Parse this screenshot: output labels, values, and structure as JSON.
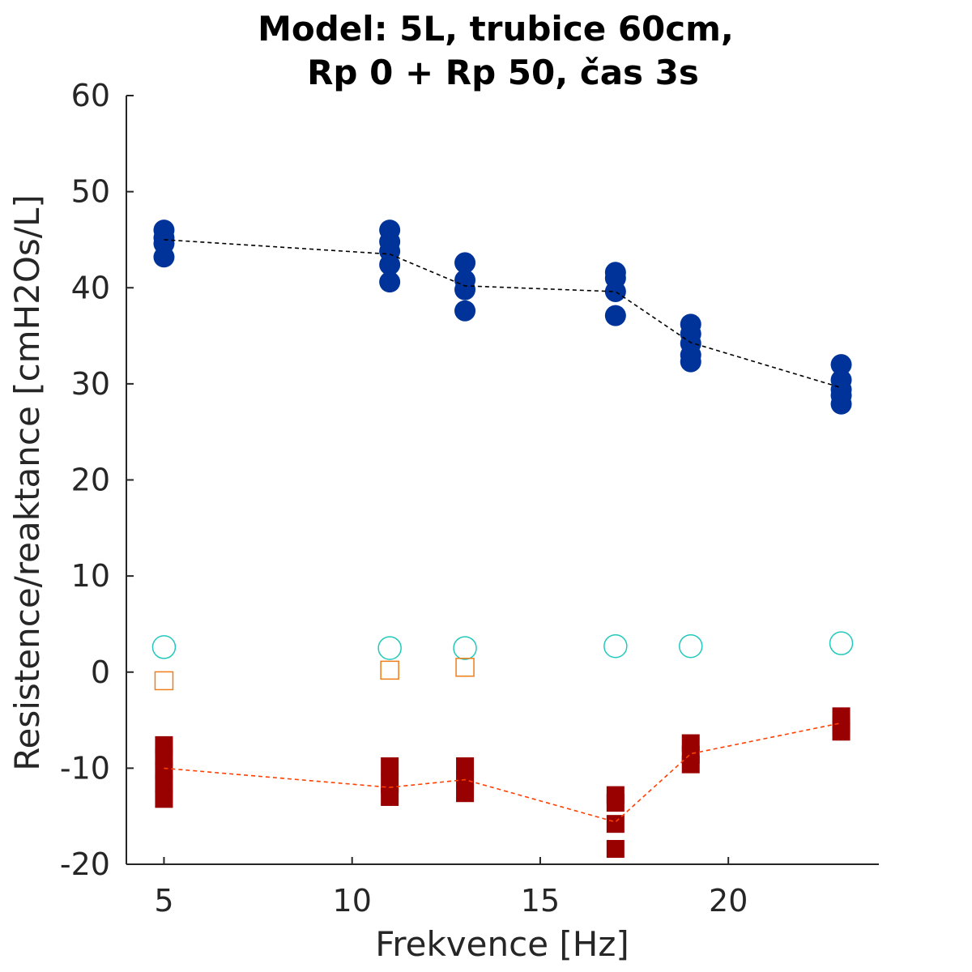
{
  "chart_data": {
    "type": "scatter",
    "title_lines": [
      "Model: 5L, trubice 60cm,",
      "Rp 0 + Rp 50, čas 3s"
    ],
    "xlabel": "Frekvence [Hz]",
    "ylabel": "Resistence/reaktance [cmH2Os/L]",
    "xlim": [
      4,
      24
    ],
    "ylim": [
      -20,
      60
    ],
    "xticks": [
      5,
      10,
      15,
      20
    ],
    "yticks": [
      -20,
      -10,
      0,
      10,
      20,
      30,
      40,
      50,
      60
    ],
    "ytick_labels": [
      "-20",
      "-10",
      "0",
      "10",
      "20",
      "30",
      "40",
      "50",
      "60"
    ],
    "grid": false,
    "legend": "none",
    "series": [
      {
        "marker": "filled-circle",
        "color": "#003399",
        "points": [
          [
            5,
            46.0
          ],
          [
            5,
            45.2
          ],
          [
            5,
            44.6
          ],
          [
            5,
            43.2
          ],
          [
            11,
            46.0
          ],
          [
            11,
            44.8
          ],
          [
            11,
            43.8
          ],
          [
            11,
            42.4
          ],
          [
            11,
            40.6
          ],
          [
            13,
            42.6
          ],
          [
            13,
            40.8
          ],
          [
            13,
            39.8
          ],
          [
            13,
            37.6
          ],
          [
            17,
            41.6
          ],
          [
            17,
            41.0
          ],
          [
            17,
            39.6
          ],
          [
            17,
            37.1
          ],
          [
            19,
            36.2
          ],
          [
            19,
            35.2
          ],
          [
            19,
            34.2
          ],
          [
            19,
            33.0
          ],
          [
            19,
            32.3
          ],
          [
            23,
            32.0
          ],
          [
            23,
            30.4
          ],
          [
            23,
            29.4
          ],
          [
            23,
            28.8
          ],
          [
            23,
            27.9
          ]
        ]
      },
      {
        "marker": "dashed-line",
        "color": "#000000",
        "points": [
          [
            5,
            45.0
          ],
          [
            11,
            43.5
          ],
          [
            13,
            40.2
          ],
          [
            17,
            39.6
          ],
          [
            19,
            34.3
          ],
          [
            23,
            29.6
          ]
        ]
      },
      {
        "marker": "filled-square",
        "color": "#990000",
        "points": [
          [
            5,
            -7.6
          ],
          [
            5,
            -8.8
          ],
          [
            5,
            -10.2
          ],
          [
            5,
            -11.6
          ],
          [
            5,
            -13.2
          ],
          [
            11,
            -9.8
          ],
          [
            11,
            -11.6
          ],
          [
            11,
            -13.0
          ],
          [
            13,
            -9.8
          ],
          [
            13,
            -11.2
          ],
          [
            13,
            -12.6
          ],
          [
            17,
            -12.8
          ],
          [
            17,
            -13.6
          ],
          [
            17,
            -15.8
          ],
          [
            17,
            -18.4
          ],
          [
            19,
            -7.4
          ],
          [
            19,
            -8.6
          ],
          [
            19,
            -9.6
          ],
          [
            23,
            -4.6
          ],
          [
            23,
            -5.6
          ],
          [
            23,
            -6.2
          ]
        ]
      },
      {
        "marker": "dashed-line",
        "color": "#ff4000",
        "points": [
          [
            5,
            -10.0
          ],
          [
            11,
            -12.0
          ],
          [
            13,
            -11.2
          ],
          [
            17,
            -15.6
          ],
          [
            19,
            -8.5
          ],
          [
            23,
            -5.3
          ]
        ]
      },
      {
        "marker": "open-circle",
        "color": "#22c9bc",
        "points": [
          [
            5,
            2.6
          ],
          [
            11,
            2.5
          ],
          [
            13,
            2.5
          ],
          [
            17,
            2.7
          ],
          [
            19,
            2.7
          ],
          [
            23,
            3.0
          ]
        ]
      },
      {
        "marker": "open-square",
        "color": "#ee7d1a",
        "points": [
          [
            5,
            -0.9
          ],
          [
            11,
            0.2
          ],
          [
            13,
            0.5
          ]
        ]
      }
    ]
  }
}
